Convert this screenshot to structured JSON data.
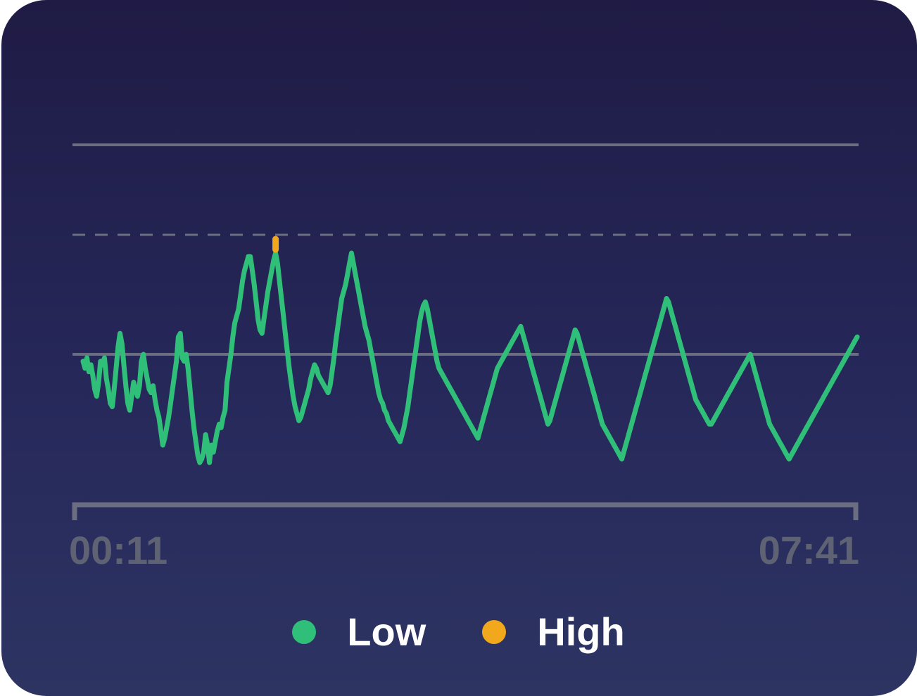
{
  "chart_data": {
    "type": "line",
    "x_start_label": "00:11",
    "x_end_label": "07:41",
    "ylim": [
      0,
      100
    ],
    "reference_lines": {
      "upper_solid": 100,
      "threshold_dashed": 70,
      "baseline_solid": 40
    },
    "series": [
      {
        "name": "Low",
        "color": "#2fbf78",
        "values": [
          38,
          36,
          39,
          35,
          37,
          34,
          30,
          28,
          32,
          38,
          37,
          39,
          33,
          30,
          26,
          25,
          30,
          36,
          42,
          46,
          43,
          37,
          31,
          26,
          24,
          28,
          32,
          30,
          28,
          31,
          38,
          40,
          36,
          33,
          30,
          29,
          31,
          27,
          24,
          22,
          18,
          14,
          16,
          19,
          22,
          26,
          30,
          34,
          38,
          45,
          46,
          39,
          38,
          40,
          36,
          30,
          24,
          19,
          15,
          11,
          9,
          10,
          12,
          17,
          14,
          9,
          14,
          12,
          15,
          18,
          20,
          19,
          22,
          24,
          32,
          36,
          40,
          45,
          49,
          51,
          53,
          57,
          61,
          64,
          66,
          68,
          68,
          64,
          60,
          55,
          50,
          47,
          46,
          50,
          54,
          58,
          61,
          64,
          67,
          69,
          66,
          61,
          56,
          51,
          46,
          41,
          36,
          32,
          28,
          25,
          23,
          21,
          22,
          24,
          26,
          28,
          30,
          33,
          35,
          37,
          36,
          34,
          33,
          32,
          31,
          30,
          29,
          31,
          35,
          39,
          44,
          48,
          52,
          56,
          58,
          60,
          63,
          66,
          69,
          66,
          63,
          60,
          57,
          54,
          51,
          48,
          46,
          44,
          41,
          38,
          35,
          32,
          29,
          27,
          26,
          24,
          23,
          21,
          20,
          19,
          18,
          17,
          16,
          15,
          17,
          19,
          22,
          25,
          29,
          33,
          37,
          41,
          45,
          49,
          52,
          54,
          55,
          53,
          50,
          47,
          44,
          41,
          38,
          36,
          35,
          34,
          33,
          32,
          31,
          30,
          29,
          28,
          27,
          26,
          25,
          24,
          23,
          22,
          21,
          20,
          19,
          18,
          17,
          16,
          18,
          20,
          22,
          24,
          26,
          28,
          30,
          32,
          34,
          36,
          37,
          38,
          39,
          40,
          41,
          42,
          43,
          44,
          45,
          46,
          47,
          48,
          46,
          44,
          42,
          40,
          38,
          36,
          34,
          32,
          30,
          28,
          26,
          24,
          22,
          20,
          21,
          23,
          25,
          27,
          29,
          31,
          33,
          35,
          37,
          39,
          41,
          43,
          45,
          47,
          46,
          44,
          42,
          40,
          38,
          36,
          34,
          32,
          30,
          28,
          26,
          24,
          22,
          20,
          19,
          18,
          17,
          16,
          15,
          14,
          13,
          12,
          11,
          10,
          12,
          14,
          16,
          18,
          20,
          22,
          24,
          26,
          28,
          30,
          32,
          34,
          36,
          38,
          40,
          42,
          44,
          46,
          48,
          50,
          52,
          54,
          56,
          55,
          53,
          51,
          49,
          47,
          45,
          43,
          41,
          39,
          37,
          35,
          33,
          31,
          29,
          27,
          26,
          25,
          24,
          23,
          22,
          21,
          20,
          20,
          21,
          22,
          23,
          24,
          25,
          26,
          27,
          28,
          29,
          30,
          31,
          32,
          33,
          34,
          35,
          36,
          37,
          38,
          39,
          40,
          38,
          36,
          34,
          32,
          30,
          28,
          26,
          24,
          22,
          20,
          19,
          18,
          17,
          16,
          15,
          14,
          13,
          12,
          11,
          10,
          11,
          12,
          13,
          14,
          15,
          16,
          17,
          18,
          19,
          20,
          21,
          22,
          23,
          24,
          25,
          26,
          27,
          28,
          29,
          30,
          31,
          32,
          33,
          34,
          35,
          36,
          37,
          38,
          39,
          40,
          41,
          42,
          43,
          44,
          45
        ]
      },
      {
        "name": "High",
        "color": "#f2a81d",
        "values": [
          73
        ]
      }
    ]
  }
}
